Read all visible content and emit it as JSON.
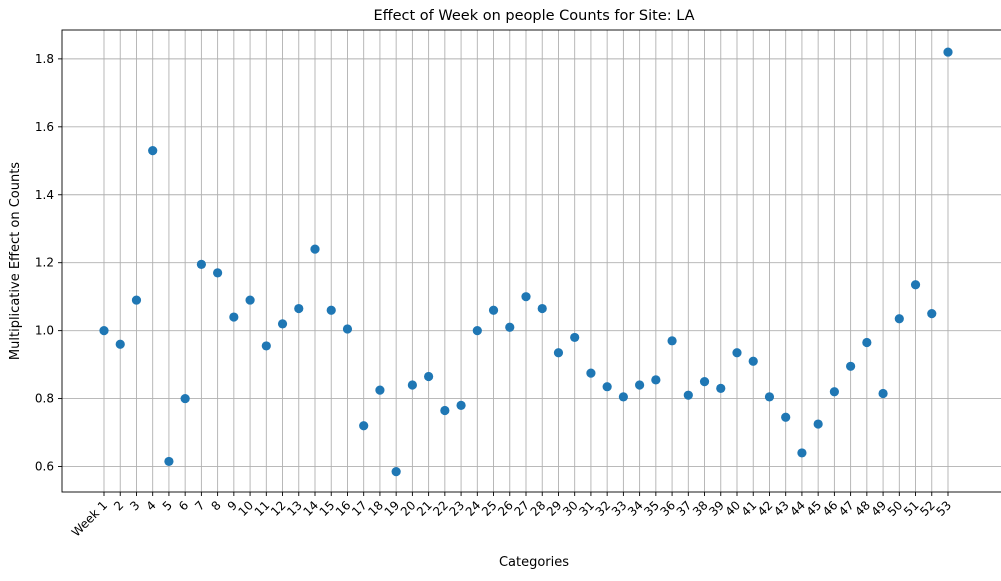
{
  "chart_data": {
    "type": "scatter",
    "title": "Effect of Week on people Counts for Site: LA",
    "xlabel": "Categories",
    "ylabel": "Multiplicative Effect on Counts",
    "categories": [
      "Week 1",
      "2",
      "3",
      "4",
      "5",
      "6",
      "7",
      "8",
      "9",
      "10",
      "11",
      "12",
      "13",
      "14",
      "15",
      "16",
      "17",
      "18",
      "19",
      "20",
      "21",
      "22",
      "23",
      "24",
      "25",
      "26",
      "27",
      "28",
      "29",
      "30",
      "31",
      "32",
      "33",
      "34",
      "35",
      "36",
      "37",
      "38",
      "39",
      "40",
      "41",
      "42",
      "43",
      "44",
      "45",
      "46",
      "47",
      "48",
      "49",
      "50",
      "51",
      "52",
      "53"
    ],
    "values": [
      1.0,
      0.96,
      1.09,
      1.53,
      0.615,
      0.8,
      1.195,
      1.17,
      1.04,
      1.09,
      0.955,
      1.02,
      1.065,
      1.24,
      1.06,
      1.005,
      0.72,
      0.825,
      0.585,
      0.84,
      0.865,
      0.765,
      0.78,
      1.0,
      1.06,
      1.01,
      1.1,
      1.065,
      0.935,
      0.98,
      0.875,
      0.835,
      0.805,
      0.84,
      0.855,
      0.97,
      0.81,
      0.85,
      0.83,
      0.935,
      0.91,
      0.805,
      0.745,
      0.64,
      0.725,
      0.82,
      0.895,
      0.965,
      0.815,
      1.035,
      1.135,
      1.05,
      1.82
    ],
    "ylim": [
      0.525,
      1.885
    ],
    "yticks": [
      "0.6",
      "0.8",
      "1.0",
      "1.2",
      "1.4",
      "1.6",
      "1.8"
    ],
    "grid": true,
    "marker_color": "#1f77b4"
  }
}
